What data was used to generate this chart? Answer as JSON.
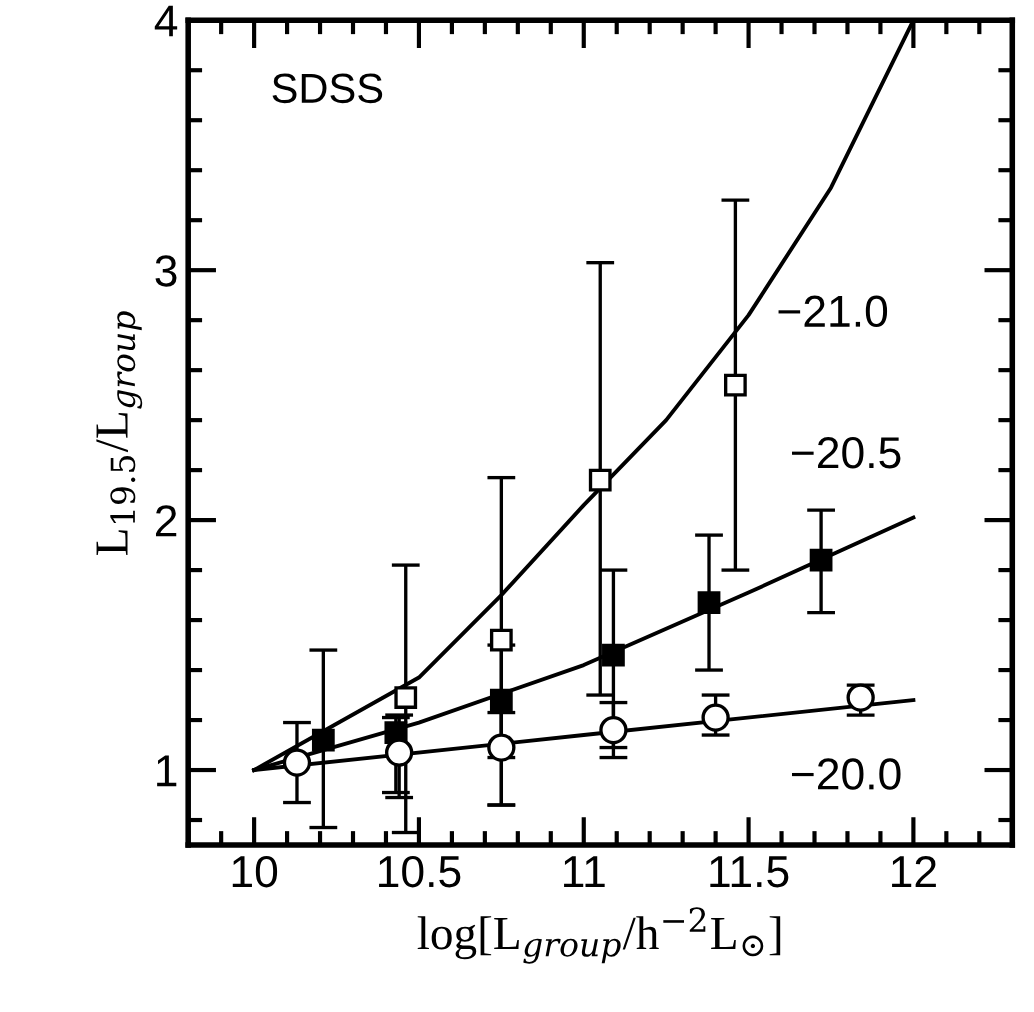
{
  "chart_data": {
    "type": "scatter",
    "xlabel": "log[L$_{group}$/h$^{−2}$L$_{⊙}$]",
    "ylabel": "L$_{19.5}$/L$_{group}$",
    "annotations": [
      "SDSS"
    ],
    "xlim": [
      9.8,
      12.3
    ],
    "ylim": [
      0.7,
      4
    ],
    "xticks": [
      10,
      10.5,
      11,
      11.5,
      12
    ],
    "yticks": [
      1,
      2,
      3,
      4
    ],
    "grid": false,
    "legend": "right",
    "series": [
      {
        "marker": "square",
        "color": "#000000",
        "x": [
          10.46,
          10.75,
          11.05,
          11.46
        ],
        "values": [
          1.29,
          1.52,
          2.16,
          2.54
        ],
        "errors": [
          [
            0.75,
            1.82
          ],
          [
            0.86,
            2.17
          ],
          [
            1.3,
            3.03
          ],
          [
            1.8,
            3.28
          ]
        ]
      },
      {
        "marker": "square",
        "color": "#000000",
        "x": [
          10.21,
          10.43,
          10.75,
          11.09,
          11.38,
          11.72
        ],
        "values": [
          1.12,
          1.15,
          1.28,
          1.46,
          1.67,
          1.84
        ],
        "errors": [
          [
            0.77,
            1.48
          ],
          [
            0.91,
            1.21
          ],
          [
            1.05,
            1.5
          ],
          [
            1.09,
            1.8
          ],
          [
            1.4,
            1.94
          ],
          [
            1.63,
            2.04
          ]
        ]
      },
      {
        "marker": "circle",
        "color": "#000000",
        "x": [
          10.13,
          10.44,
          10.75,
          11.09,
          11.4,
          11.84
        ],
        "values": [
          1.03,
          1.07,
          1.09,
          1.16,
          1.21,
          1.29
        ],
        "errors": [
          [
            0.87,
            1.19
          ],
          [
            0.89,
            1.22
          ],
          [
            0.86,
            1.23
          ],
          [
            1.05,
            1.27
          ],
          [
            1.14,
            1.3
          ],
          [
            1.22,
            1.34
          ]
        ]
      },
      {
        "type": "line",
        "name": "−21.0",
        "color": "#000000",
        "x": [
          10,
          10.5,
          10.75,
          11,
          11.25,
          11.5,
          11.75,
          12
        ],
        "values": [
          1,
          1.37,
          1.7,
          2.06,
          2.4,
          2.82,
          3.33,
          4
        ]
      },
      {
        "type": "line",
        "name": "−20.5",
        "color": "#000000",
        "x": [
          10,
          10.5,
          11,
          11.5,
          12
        ],
        "values": [
          1,
          1.19,
          1.42,
          1.71,
          2.01
        ]
      },
      {
        "type": "line",
        "name": "−20.0",
        "color": "#000000",
        "x": [
          10,
          11,
          12
        ],
        "values": [
          1,
          1.14,
          1.28
        ]
      }
    ]
  }
}
